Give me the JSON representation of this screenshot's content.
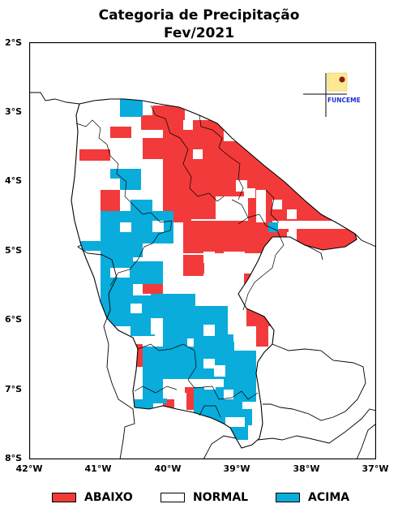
{
  "title_line1": "Categoria de Precipitação",
  "title_line2": "Fev/2021",
  "lat_labels": [
    "2°S",
    "3°S",
    "4°S",
    "5°S",
    "6°S",
    "7°S",
    "8°S"
  ],
  "lon_labels": [
    "42°W",
    "41°W",
    "40°W",
    "39°W",
    "38°W",
    "37°W"
  ],
  "logo_text": "FUNCEME",
  "legend": [
    {
      "label": "ABAIXO",
      "color": "#f23a3a"
    },
    {
      "label": "NORMAL",
      "color": "#ffffff"
    },
    {
      "label": "ACIMA",
      "color": "#09acdb"
    }
  ],
  "colors": {
    "abaixo": "#f23a3a",
    "acima": "#09acdb",
    "normal": "#ffffff"
  }
}
